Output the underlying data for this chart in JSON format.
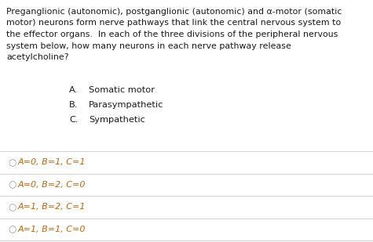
{
  "background_color": "#ffffff",
  "question_line1": "Preganglionic (autonomic), postganglionic (autonomic) and α-motor (somatic",
  "question_line2": "motor) neurons form nerve pathways that link the central nervous system to",
  "question_line3": "the effector organs.  In each of the three divisions of the peripheral nervous",
  "question_line4": "system below, how many neurons in each nerve pathway release",
  "question_line5": "acetylcholine?",
  "sub_items": [
    {
      "label": "A.",
      "text": "Somatic motor"
    },
    {
      "label": "B.",
      "text": "Parasympathetic"
    },
    {
      "label": "C.",
      "text": "Sympathetic"
    }
  ],
  "answer_options": [
    "A=0, B=1, C=1",
    "A=0, B=2, C=0",
    "A=1, B=2, C=1",
    "A=1, B=1, C=0"
  ],
  "divider_color": "#d0d0d0",
  "text_color": "#1a1a1a",
  "option_text_color": "#c86400",
  "circle_color": "#999999",
  "question_fontsize": 7.9,
  "sub_item_fontsize": 8.2,
  "option_fontsize": 8.0
}
